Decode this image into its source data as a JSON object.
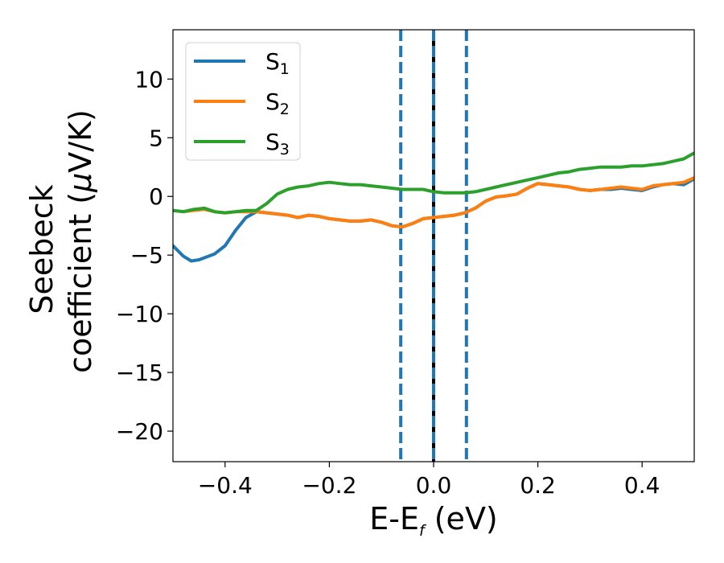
{
  "chart_data": {
    "type": "line",
    "xlabel": "E-E",
    "xlabel_sub": "f",
    "xlabel_unit": " (eV)",
    "ylabel_line1": "Seebeck",
    "ylabel_line2": "coefficient  (",
    "ylabel_mu": "μ",
    "ylabel_tail": "V/K)",
    "xlim": [
      -0.5,
      0.5
    ],
    "ylim": [
      -22.6,
      14.2
    ],
    "xticks": [
      {
        "value": -0.4,
        "label": "−0.4"
      },
      {
        "value": -0.2,
        "label": "−0.2"
      },
      {
        "value": 0.0,
        "label": "0.0"
      },
      {
        "value": 0.2,
        "label": "0.2"
      },
      {
        "value": 0.4,
        "label": "0.4"
      }
    ],
    "yticks": [
      {
        "value": 10,
        "label": "10"
      },
      {
        "value": 5,
        "label": "5"
      },
      {
        "value": 0,
        "label": "0"
      },
      {
        "value": -5,
        "label": "−5"
      },
      {
        "value": -10,
        "label": "−10"
      },
      {
        "value": -15,
        "label": "−15"
      },
      {
        "value": -20,
        "label": "−20"
      }
    ],
    "grid": false,
    "legend_position": "top-left",
    "vlines": [
      {
        "x": 0.0,
        "style": "solid",
        "color": "#000000"
      },
      {
        "x": 0.0,
        "style": "dashed",
        "color": "#1f77b4"
      },
      {
        "x": -0.063,
        "style": "dashed",
        "color": "#1f77b4"
      },
      {
        "x": 0.063,
        "style": "dashed",
        "color": "#1f77b4"
      }
    ],
    "series": [
      {
        "name": "S",
        "name_sub": "1",
        "color": "#1f77b4",
        "x": [
          -0.5,
          -0.48,
          -0.465,
          -0.45,
          -0.42,
          -0.4,
          -0.38,
          -0.36,
          -0.34,
          -0.32,
          -0.3,
          -0.28,
          -0.26,
          -0.24,
          -0.22,
          -0.2,
          -0.18,
          -0.16,
          -0.14,
          -0.12,
          -0.1,
          -0.08,
          -0.06,
          -0.04,
          -0.02,
          0.0,
          0.02,
          0.04,
          0.06,
          0.08,
          0.1,
          0.12,
          0.14,
          0.16,
          0.18,
          0.2,
          0.22,
          0.24,
          0.26,
          0.28,
          0.3,
          0.32,
          0.34,
          0.36,
          0.38,
          0.4,
          0.42,
          0.44,
          0.46,
          0.48,
          0.5
        ],
        "values": [
          -4.2,
          -5.1,
          -5.5,
          -5.4,
          -4.9,
          -4.2,
          -2.9,
          -1.8,
          -1.3,
          -1.4,
          -1.5,
          -1.6,
          -1.8,
          -1.6,
          -1.7,
          -1.9,
          -2.0,
          -2.1,
          -2.1,
          -2.0,
          -2.2,
          -2.5,
          -2.6,
          -2.3,
          -1.9,
          -1.8,
          -1.7,
          -1.6,
          -1.4,
          -1.0,
          -0.4,
          -0.05,
          0.05,
          0.2,
          0.7,
          1.1,
          1.0,
          0.9,
          0.8,
          0.6,
          0.5,
          0.6,
          0.6,
          0.7,
          0.6,
          0.5,
          0.8,
          1.0,
          1.1,
          1.0,
          1.5
        ]
      },
      {
        "name": "S",
        "name_sub": "2",
        "color": "#ff7f0e",
        "x": [
          -0.5,
          -0.48,
          -0.46,
          -0.44,
          -0.42,
          -0.4,
          -0.38,
          -0.36,
          -0.34,
          -0.32,
          -0.3,
          -0.28,
          -0.26,
          -0.24,
          -0.22,
          -0.2,
          -0.18,
          -0.16,
          -0.14,
          -0.12,
          -0.1,
          -0.08,
          -0.06,
          -0.04,
          -0.02,
          0.0,
          0.02,
          0.04,
          0.06,
          0.08,
          0.1,
          0.12,
          0.14,
          0.16,
          0.18,
          0.2,
          0.22,
          0.24,
          0.26,
          0.28,
          0.3,
          0.32,
          0.34,
          0.36,
          0.38,
          0.4,
          0.42,
          0.44,
          0.46,
          0.48,
          0.5
        ],
        "values": [
          -1.2,
          -1.3,
          -1.2,
          -1.1,
          -1.3,
          -1.4,
          -1.3,
          -1.3,
          -1.3,
          -1.4,
          -1.5,
          -1.6,
          -1.8,
          -1.6,
          -1.7,
          -1.9,
          -2.0,
          -2.1,
          -2.1,
          -2.0,
          -2.2,
          -2.5,
          -2.6,
          -2.3,
          -1.9,
          -1.8,
          -1.7,
          -1.6,
          -1.4,
          -1.0,
          -0.4,
          -0.05,
          0.05,
          0.2,
          0.7,
          1.1,
          1.0,
          0.9,
          0.8,
          0.6,
          0.5,
          0.6,
          0.7,
          0.8,
          0.7,
          0.6,
          0.9,
          1.0,
          1.1,
          1.2,
          1.6
        ]
      },
      {
        "name": "S",
        "name_sub": "3",
        "color": "#2ca02c",
        "x": [
          -0.5,
          -0.48,
          -0.46,
          -0.44,
          -0.42,
          -0.4,
          -0.38,
          -0.36,
          -0.34,
          -0.32,
          -0.3,
          -0.28,
          -0.26,
          -0.24,
          -0.22,
          -0.2,
          -0.18,
          -0.16,
          -0.14,
          -0.12,
          -0.1,
          -0.08,
          -0.06,
          -0.04,
          -0.02,
          0.0,
          0.02,
          0.04,
          0.06,
          0.08,
          0.1,
          0.12,
          0.14,
          0.16,
          0.18,
          0.2,
          0.22,
          0.24,
          0.26,
          0.28,
          0.3,
          0.32,
          0.34,
          0.36,
          0.38,
          0.4,
          0.42,
          0.44,
          0.46,
          0.48,
          0.5
        ],
        "values": [
          -1.2,
          -1.3,
          -1.1,
          -1.0,
          -1.3,
          -1.4,
          -1.3,
          -1.2,
          -1.2,
          -0.6,
          0.2,
          0.6,
          0.8,
          0.9,
          1.1,
          1.2,
          1.1,
          1.0,
          1.0,
          0.9,
          0.8,
          0.7,
          0.6,
          0.6,
          0.6,
          0.4,
          0.3,
          0.3,
          0.3,
          0.4,
          0.6,
          0.8,
          1.0,
          1.2,
          1.4,
          1.6,
          1.8,
          2.0,
          2.1,
          2.3,
          2.4,
          2.5,
          2.5,
          2.5,
          2.6,
          2.6,
          2.7,
          2.8,
          3.0,
          3.2,
          3.7
        ]
      }
    ]
  }
}
